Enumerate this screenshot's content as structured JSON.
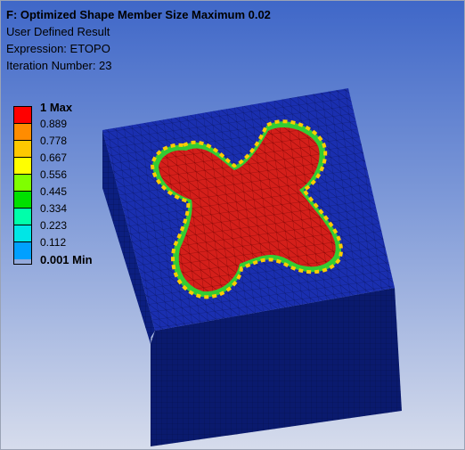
{
  "result": {
    "title": "F: Optimized Shape Member Size Maximum 0.02",
    "type": "User Defined Result",
    "expression": "Expression: ETOPO",
    "iteration": "Iteration Number: 23"
  },
  "legend": {
    "labels": [
      "1 Max",
      "0.889",
      "0.778",
      "0.667",
      "0.556",
      "0.445",
      "0.334",
      "0.223",
      "0.112",
      "0.001 Min"
    ],
    "colors": [
      "#ff0000",
      "#ff8c00",
      "#ffc800",
      "#ffff00",
      "#7fff00",
      "#00e000",
      "#00ffaa",
      "#00e6e6",
      "#00a0ff",
      "#0000ff"
    ]
  },
  "model": {
    "top_color": "#1a2fb0",
    "left_color": "#0c1f80",
    "front_color": "#0a1a6e",
    "shape_color": "#d41f1a",
    "edge_colors": [
      "#ffcc00",
      "#33cc33",
      "#66ee99",
      "#ff8800",
      "#00cccc"
    ]
  }
}
